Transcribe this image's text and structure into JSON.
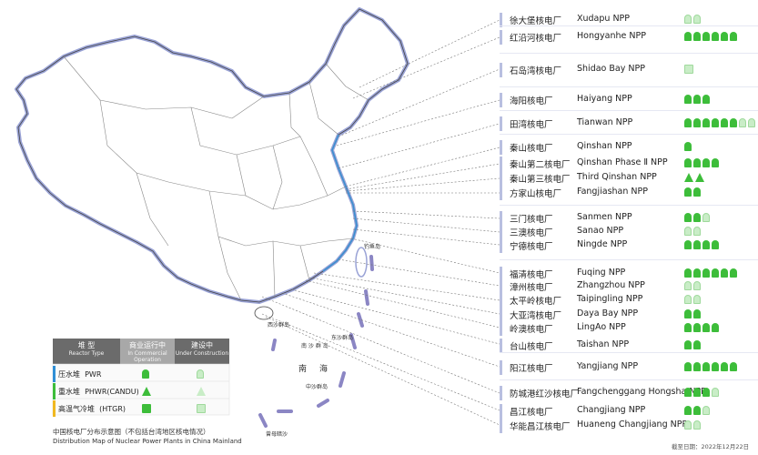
{
  "legend": {
    "col_type": "堆 型",
    "col_type_en": "Reactor Type",
    "col_op": "商业运行中",
    "col_op_en": "In Commercial Operation",
    "col_con": "建设中",
    "col_con_en": "Under Construction",
    "rows": [
      {
        "cn": "压水堆",
        "en": "PWR",
        "color": "#2f8fd6"
      },
      {
        "cn": "重水堆",
        "en": "PHWR(CANDU)",
        "color": "#3dbd3a"
      },
      {
        "cn": "高温气冷堆",
        "en": "(HTGR)",
        "color": "#f0b820"
      }
    ]
  },
  "caption_cn": "中国核电厂分布示意图（不包括台湾地区核电情况）",
  "caption_en": "Distribution Map of Nuclear Power Plants in China Mainland",
  "as_of": "截至日期：2022年12月22日",
  "map_labels": {
    "south_china_sea_a": "南",
    "south_china_sea_b": "海",
    "nanhai_islands": "南 沙 群 岛",
    "xisha": "西沙群岛",
    "dongsha": "东沙群岛",
    "zhongsha": "中沙群岛",
    "zengmu": "曾母暗沙",
    "diaoyu": "钓鱼岛"
  },
  "plants": [
    {
      "cn": "徐大堡核电厂",
      "en": "Xudapu NPP",
      "op": 0,
      "con": 2,
      "kind": "pwr"
    },
    {
      "cn": "红沿河核电厂",
      "en": "Hongyanhe NPP",
      "op": 6,
      "con": 0,
      "kind": "pwr"
    },
    {
      "cn": "石岛湾核电厂",
      "en": "Shidao Bay NPP",
      "op": 0,
      "con": 1,
      "kind": "htgr"
    },
    {
      "cn": "海阳核电厂",
      "en": "Haiyang NPP",
      "op": 3,
      "con": 0,
      "kind": "pwr"
    },
    {
      "cn": "田湾核电厂",
      "en": "Tianwan NPP",
      "op": 6,
      "con": 2,
      "kind": "pwr"
    },
    {
      "cn": "秦山核电厂",
      "en": "Qinshan NPP",
      "op": 1,
      "con": 0,
      "kind": "pwr"
    },
    {
      "cn": "秦山第二核电厂",
      "en": "Qinshan Phase Ⅱ NPP",
      "op": 4,
      "con": 0,
      "kind": "pwr"
    },
    {
      "cn": "秦山第三核电厂",
      "en": "Third Qinshan NPP",
      "op": 2,
      "con": 0,
      "kind": "phwr"
    },
    {
      "cn": "方家山核电厂",
      "en": "Fangjiashan NPP",
      "op": 2,
      "con": 0,
      "kind": "pwr"
    },
    {
      "cn": "三门核电厂",
      "en": "Sanmen NPP",
      "op": 2,
      "con": 1,
      "kind": "pwr"
    },
    {
      "cn": "三澳核电厂",
      "en": "Sanao NPP",
      "op": 0,
      "con": 2,
      "kind": "pwr"
    },
    {
      "cn": "宁德核电厂",
      "en": "Ningde NPP",
      "op": 4,
      "con": 0,
      "kind": "pwr"
    },
    {
      "cn": "福清核电厂",
      "en": "Fuqing NPP",
      "op": 6,
      "con": 0,
      "kind": "pwr"
    },
    {
      "cn": "漳州核电厂",
      "en": "Zhangzhou NPP",
      "op": 0,
      "con": 2,
      "kind": "pwr"
    },
    {
      "cn": "太平岭核电厂",
      "en": "Taipingling NPP",
      "op": 0,
      "con": 2,
      "kind": "pwr"
    },
    {
      "cn": "大亚湾核电厂",
      "en": "Daya Bay NPP",
      "op": 2,
      "con": 0,
      "kind": "pwr"
    },
    {
      "cn": "岭澳核电厂",
      "en": "LingAo NPP",
      "op": 4,
      "con": 0,
      "kind": "pwr"
    },
    {
      "cn": "台山核电厂",
      "en": "Taishan NPP",
      "op": 2,
      "con": 0,
      "kind": "pwr"
    },
    {
      "cn": "阳江核电厂",
      "en": "Yangjiang NPP",
      "op": 6,
      "con": 0,
      "kind": "pwr"
    },
    {
      "cn": "防城港红沙核电厂",
      "en": "Fangchenggang Hongsha NPP",
      "op": 3,
      "con": 1,
      "kind": "pwr"
    },
    {
      "cn": "昌江核电厂",
      "en": "Changjiang NPP",
      "op": 2,
      "con": 1,
      "kind": "pwr"
    },
    {
      "cn": "华能昌江核电厂",
      "en": "Huaneng Changjiang NPP",
      "op": 0,
      "con": 2,
      "kind": "pwr"
    }
  ]
}
